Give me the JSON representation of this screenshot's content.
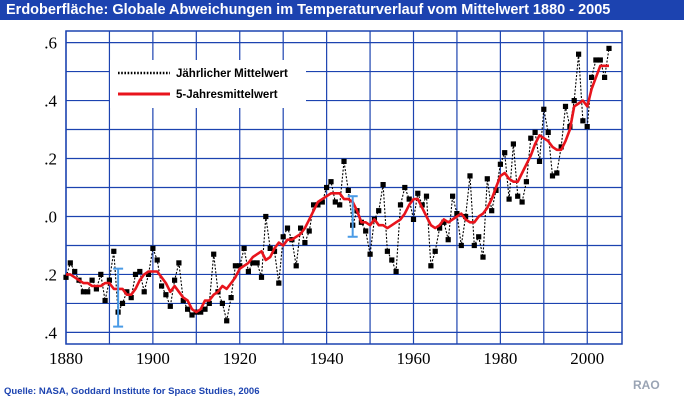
{
  "title": "Erdoberfläche: Globale Abweichungen im Temperaturverlauf vom Mittelwert 1880 - 2005",
  "source": "Quelle: NASA, Goddard Institute for Space Studies, 2006",
  "watermark": "RAO",
  "colors": {
    "title_bg": "#1c43b0",
    "grid": "#1c43b0",
    "five_year": "#e8141c",
    "annual": "#000000",
    "error_bar": "#4a9be6",
    "source_text": "#1c43b0"
  },
  "chart_data": {
    "type": "line",
    "xlim": [
      1880,
      2008
    ],
    "ylim": [
      -0.44,
      0.64
    ],
    "grid": true,
    "legend_position": "top-left",
    "x_ticks": [
      1880,
      1900,
      1920,
      1940,
      1960,
      1980,
      2000
    ],
    "x_tick_labels": [
      "1880",
      "1900",
      "1920",
      "1940",
      "1960",
      "1980",
      "2000"
    ],
    "y_ticks": [
      0.6,
      0.4,
      0.2,
      0.0,
      -0.2,
      -0.4
    ],
    "y_tick_labels": [
      ".6",
      ".4",
      ".2",
      ".0",
      ".2",
      ".4"
    ],
    "x": [
      1880,
      1881,
      1882,
      1883,
      1884,
      1885,
      1886,
      1887,
      1888,
      1889,
      1890,
      1891,
      1892,
      1893,
      1894,
      1895,
      1896,
      1897,
      1898,
      1899,
      1900,
      1901,
      1902,
      1903,
      1904,
      1905,
      1906,
      1907,
      1908,
      1909,
      1910,
      1911,
      1912,
      1913,
      1914,
      1915,
      1916,
      1917,
      1918,
      1919,
      1920,
      1921,
      1922,
      1923,
      1924,
      1925,
      1926,
      1927,
      1928,
      1929,
      1930,
      1931,
      1932,
      1933,
      1934,
      1935,
      1936,
      1937,
      1938,
      1939,
      1940,
      1941,
      1942,
      1943,
      1944,
      1945,
      1946,
      1947,
      1948,
      1949,
      1950,
      1951,
      1952,
      1953,
      1954,
      1955,
      1956,
      1957,
      1958,
      1959,
      1960,
      1961,
      1962,
      1963,
      1964,
      1965,
      1966,
      1967,
      1968,
      1969,
      1970,
      1971,
      1972,
      1973,
      1974,
      1975,
      1976,
      1977,
      1978,
      1979,
      1980,
      1981,
      1982,
      1983,
      1984,
      1985,
      1986,
      1987,
      1988,
      1989,
      1990,
      1991,
      1992,
      1993,
      1994,
      1995,
      1996,
      1997,
      1998,
      1999,
      2000,
      2001,
      2002,
      2003,
      2004,
      2005
    ],
    "series": [
      {
        "name": "Jährlicher Mittelwert",
        "values": [
          -0.21,
          -0.16,
          -0.19,
          -0.22,
          -0.26,
          -0.26,
          -0.22,
          -0.25,
          -0.2,
          -0.29,
          -0.22,
          -0.12,
          -0.33,
          -0.3,
          -0.26,
          -0.28,
          -0.2,
          -0.19,
          -0.26,
          -0.2,
          -0.11,
          -0.15,
          -0.24,
          -0.27,
          -0.31,
          -0.22,
          -0.16,
          -0.29,
          -0.32,
          -0.34,
          -0.33,
          -0.33,
          -0.32,
          -0.3,
          -0.13,
          -0.26,
          -0.3,
          -0.36,
          -0.28,
          -0.17,
          -0.17,
          -0.11,
          -0.19,
          -0.16,
          -0.16,
          -0.21,
          0.0,
          -0.11,
          -0.12,
          -0.23,
          -0.07,
          -0.04,
          -0.08,
          -0.17,
          -0.04,
          -0.09,
          -0.05,
          0.04,
          0.04,
          0.05,
          0.1,
          0.12,
          0.05,
          0.04,
          0.19,
          0.09,
          -0.03,
          0.02,
          -0.02,
          -0.05,
          -0.13,
          -0.01,
          0.02,
          0.11,
          -0.12,
          -0.15,
          -0.19,
          0.04,
          0.1,
          0.06,
          -0.01,
          0.08,
          0.04,
          0.07,
          -0.17,
          -0.12,
          -0.04,
          -0.02,
          -0.08,
          0.07,
          0.01,
          -0.1,
          0.0,
          0.14,
          -0.1,
          -0.07,
          -0.14,
          0.13,
          0.02,
          0.09,
          0.18,
          0.22,
          0.06,
          0.25,
          0.07,
          0.05,
          0.12,
          0.27,
          0.29,
          0.19,
          0.37,
          0.29,
          0.14,
          0.15,
          0.24,
          0.38,
          0.31,
          0.4,
          0.56,
          0.33,
          0.31,
          0.48,
          0.54,
          0.54,
          0.48,
          0.58
        ]
      },
      {
        "name": "5-Jahresmittelwert",
        "values": [
          -0.2,
          -0.2,
          -0.21,
          -0.22,
          -0.23,
          -0.23,
          -0.24,
          -0.24,
          -0.24,
          -0.23,
          -0.23,
          -0.25,
          -0.25,
          -0.25,
          -0.27,
          -0.27,
          -0.25,
          -0.22,
          -0.2,
          -0.19,
          -0.19,
          -0.19,
          -0.21,
          -0.23,
          -0.26,
          -0.24,
          -0.26,
          -0.28,
          -0.29,
          -0.32,
          -0.33,
          -0.32,
          -0.29,
          -0.29,
          -0.27,
          -0.26,
          -0.24,
          -0.25,
          -0.23,
          -0.21,
          -0.18,
          -0.17,
          -0.16,
          -0.14,
          -0.13,
          -0.12,
          -0.15,
          -0.14,
          -0.11,
          -0.09,
          -0.1,
          -0.08,
          -0.08,
          -0.07,
          -0.06,
          -0.04,
          -0.01,
          0.02,
          0.05,
          0.06,
          0.07,
          0.08,
          0.08,
          0.08,
          0.06,
          0.06,
          0.05,
          0.02,
          -0.02,
          -0.02,
          -0.03,
          -0.01,
          -0.03,
          -0.03,
          -0.04,
          -0.03,
          -0.02,
          -0.01,
          0.01,
          0.04,
          0.06,
          0.06,
          0.03,
          0.0,
          -0.03,
          -0.04,
          -0.03,
          -0.01,
          -0.02,
          -0.01,
          0.0,
          0.01,
          -0.01,
          -0.02,
          -0.02,
          0.0,
          0.01,
          0.03,
          0.06,
          0.1,
          0.14,
          0.15,
          0.13,
          0.12,
          0.12,
          0.15,
          0.18,
          0.21,
          0.25,
          0.28,
          0.27,
          0.26,
          0.24,
          0.23,
          0.23,
          0.26,
          0.3,
          0.38,
          0.39,
          0.4,
          0.38,
          0.44,
          0.48,
          0.52,
          0.52,
          0.52
        ]
      }
    ],
    "error_bars": [
      {
        "x": 1892,
        "low": -0.38,
        "high": -0.18
      },
      {
        "x": 1946,
        "low": -0.07,
        "high": 0.07
      }
    ]
  }
}
